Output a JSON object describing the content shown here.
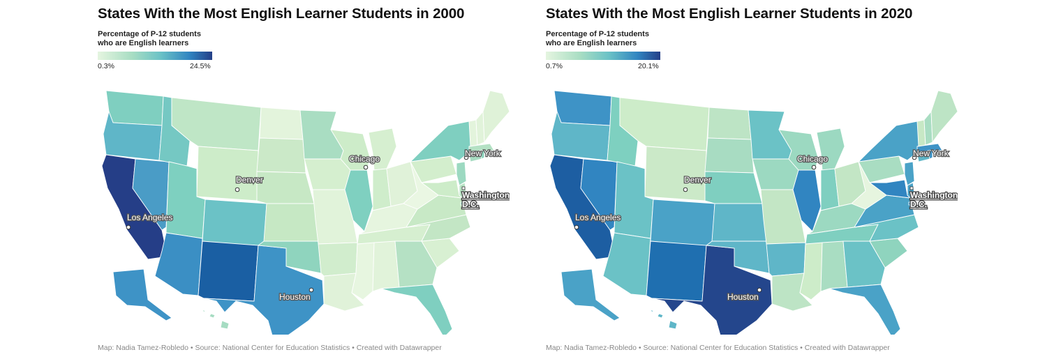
{
  "maps": [
    {
      "title": "States With the Most English Learner Students in 2000",
      "legend": {
        "title_line1": "Percentage of P-12 students",
        "title_line2": "who are English learners",
        "min_label": "0.3%",
        "max_label": "24.5%",
        "min_value": 0.3,
        "max_value": 24.5
      },
      "cities": {
        "chicago": "Chicago",
        "new_york": "New York",
        "denver": "Denver",
        "washington_line1": "Washington",
        "washington_line2": "D.C.",
        "los_angeles": "Los Angeles",
        "houston": "Houston"
      },
      "footer": "Map: Nadia Tamez-Robledo • Source: National Center for Education Statistics • Created with Datawrapper",
      "state_colors": {
        "WA": "#7fcfc0",
        "OR": "#5fb6c8",
        "CA": "#253e87",
        "NV": "#4a9cc6",
        "ID": "#75c8c3",
        "MT": "#bfe6c6",
        "WY": "#cdecc9",
        "UT": "#7ed0c0",
        "CO": "#6bc2c6",
        "AZ": "#3b8fc4",
        "NM": "#1a5fa3",
        "TX": "#3e93c6",
        "ND": "#e3f4dc",
        "SD": "#cbe9c8",
        "NE": "#c7e8c5",
        "KS": "#c6e8c4",
        "OK": "#8fd4be",
        "MN": "#a9ddc2",
        "IA": "#d5efcf",
        "MO": "#e1f3da",
        "AR": "#d1edcd",
        "LA": "#e0f2d9",
        "WI": "#cdecc9",
        "IL": "#7fd0c0",
        "MI": "#d6efd0",
        "IN": "#cfedcb",
        "OH": "#e0f2d9",
        "KY": "#e6f5df",
        "TN": "#d6efd0",
        "MS": "#e7f6e0",
        "AL": "#e1f3da",
        "GA": "#b5e1c4",
        "FL": "#7fcfc0",
        "SC": "#d8f0d2",
        "NC": "#c3e6c5",
        "VA": "#c8e9c6",
        "WV": "#eaf7e3",
        "PA": "#d3eecd",
        "NY": "#7fcfc0",
        "NJ": "#9cd9c1",
        "CT": "#a7dcc2",
        "RI": "#8fd4be",
        "MA": "#b4e1c4",
        "VT": "#e3f4dc",
        "NH": "#e1f3da",
        "ME": "#dff2d8",
        "MD": "#cdecc9",
        "DE": "#b9e3c5",
        "DC": "#8ed4be",
        "AK": "#3e93c6",
        "HI": "#a6dcc2"
      }
    },
    {
      "title": "States With the Most English Learner Students in 2020",
      "legend": {
        "title_line1": "Percentage of P-12 students",
        "title_line2": "who are English learners",
        "min_label": "0.7%",
        "max_label": "20.1%",
        "min_value": 0.7,
        "max_value": 20.1
      },
      "cities": {
        "chicago": "Chicago",
        "new_york": "New York",
        "denver": "Denver",
        "washington_line1": "Washington",
        "washington_line2": "D.C.",
        "los_angeles": "Los Angeles",
        "houston": "Houston"
      },
      "footer": "Map: Nadia Tamez-Robledo • Source: National Center for Education Statistics • Created with Datawrapper",
      "state_colors": {
        "WA": "#3e93c6",
        "OR": "#5fb6c8",
        "CA": "#1d5ea2",
        "NV": "#3185c1",
        "ID": "#7ed0c0",
        "MT": "#cdecc9",
        "WY": "#cbe9c8",
        "UT": "#6bc2c6",
        "CO": "#4aa2c7",
        "AZ": "#6bc2c6",
        "NM": "#1f6fb0",
        "TX": "#24468c",
        "ND": "#bde4c5",
        "SD": "#a8dcc2",
        "NE": "#7fcfc0",
        "KS": "#5fb6c8",
        "OK": "#5fb6c8",
        "MN": "#6bc2c6",
        "IA": "#9cd9c1",
        "MO": "#c3e6c5",
        "AR": "#5fb6c8",
        "LA": "#bde4c5",
        "WI": "#9cd9c1",
        "IL": "#3185c1",
        "MI": "#9cd9c1",
        "IN": "#7fcfc0",
        "OH": "#c3e6c5",
        "KY": "#9cd9c1",
        "TN": "#7fcfc0",
        "MS": "#cdecc9",
        "AL": "#a9ddc2",
        "GA": "#6bc2c6",
        "FL": "#4aa2c7",
        "SC": "#8fd4be",
        "NC": "#6bc2c6",
        "VA": "#4aa2c7",
        "WV": "#e6f5df",
        "PA": "#a9ddc2",
        "NY": "#4aa2c7",
        "NJ": "#4aa2c7",
        "CT": "#5fb6c8",
        "RI": "#3e93c6",
        "MA": "#3e93c6",
        "VT": "#c7e8c5",
        "NH": "#a9ddc2",
        "ME": "#bde4c5",
        "MD": "#3185c1",
        "DE": "#4aa2c7",
        "DC": "#3185c1",
        "AK": "#4aa2c7",
        "HI": "#5fb6c8"
      }
    }
  ]
}
